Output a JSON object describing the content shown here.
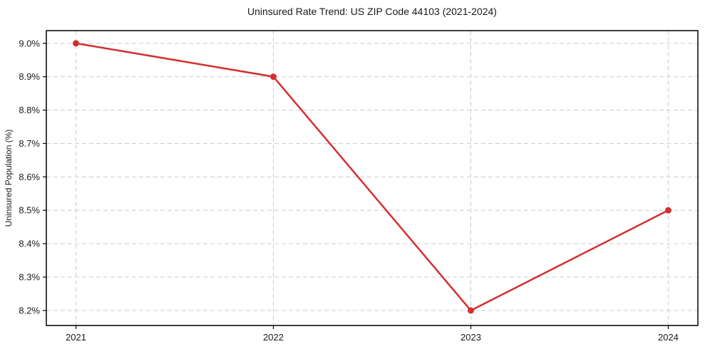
{
  "chart_data": {
    "type": "line",
    "title": "Uninsured Rate Trend: US ZIP Code 44103 (2021-2024)",
    "xlabel": "",
    "ylabel": "Uninsured Population (%)",
    "x": [
      2021,
      2022,
      2023,
      2024
    ],
    "x_tick_labels": [
      "2021",
      "2022",
      "2023",
      "2024"
    ],
    "series": [
      {
        "name": "uninsured-rate",
        "values": [
          9.0,
          8.9,
          8.2,
          8.5
        ],
        "color": "#d32f2f"
      }
    ],
    "y_ticks": [
      8.2,
      8.3,
      8.4,
      8.5,
      8.6,
      8.7,
      8.8,
      8.9,
      9.0
    ],
    "y_tick_labels": [
      "8.2%",
      "8.3%",
      "8.4%",
      "8.5%",
      "8.6%",
      "8.7%",
      "8.8%",
      "8.9%",
      "9.0%"
    ],
    "xlim": [
      2020.85,
      2024.15
    ],
    "ylim": [
      8.155,
      9.038
    ],
    "grid": true,
    "grid_style": "dashed",
    "legend": false,
    "colors": {
      "line": "#d32f2f",
      "marker": "#d32f2f",
      "grid": "#cccccc",
      "axis": "#000000",
      "text": "#1a1a1a",
      "background": "#ffffff"
    }
  }
}
